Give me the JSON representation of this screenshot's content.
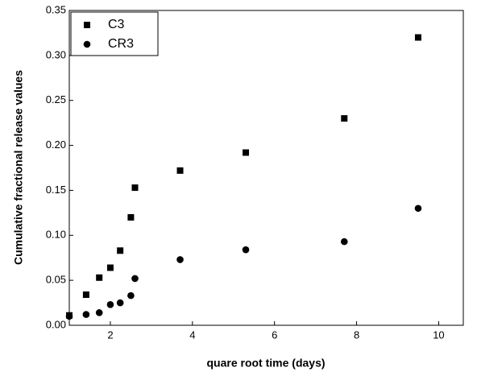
{
  "chart_data": {
    "type": "scatter",
    "x_label": "quare root time (days)",
    "y_label": "Cumulative fractional release values",
    "xlim": [
      1,
      10.6
    ],
    "xticks": [
      2,
      4,
      6,
      8,
      10
    ],
    "ylim": [
      0,
      0.35
    ],
    "yticks": [
      {
        "value": 0,
        "label": "0.00"
      },
      {
        "value": 0.05,
        "label": "0.05"
      },
      {
        "value": 0.1,
        "label": "0.10"
      },
      {
        "value": 0.15,
        "label": "0.15"
      },
      {
        "value": 0.2,
        "label": "0.20"
      },
      {
        "value": 0.25,
        "label": "0.25"
      },
      {
        "value": 0.3,
        "label": "0.30"
      },
      {
        "value": 0.35,
        "label": "0.35"
      }
    ],
    "legend": "top-left",
    "series": [
      {
        "name": "C3",
        "color": "#000000",
        "marker": "square",
        "x": [
          1,
          1.41,
          1.73,
          2,
          2.24,
          2.5,
          2.6,
          3.7,
          5.3,
          7.7,
          9.5
        ],
        "values": [
          0.011,
          0.034,
          0.053,
          0.064,
          0.083,
          0.12,
          0.153,
          0.172,
          0.192,
          0.23,
          0.32
        ]
      },
      {
        "name": "CR3",
        "color": "#000000",
        "marker": "circle",
        "x": [
          1,
          1.41,
          1.73,
          2,
          2.24,
          2.5,
          2.6,
          3.7,
          5.3,
          7.7,
          9.5
        ],
        "values": [
          0.01,
          0.012,
          0.014,
          0.023,
          0.025,
          0.033,
          0.052,
          0.073,
          0.084,
          0.093,
          0.13
        ]
      }
    ]
  }
}
